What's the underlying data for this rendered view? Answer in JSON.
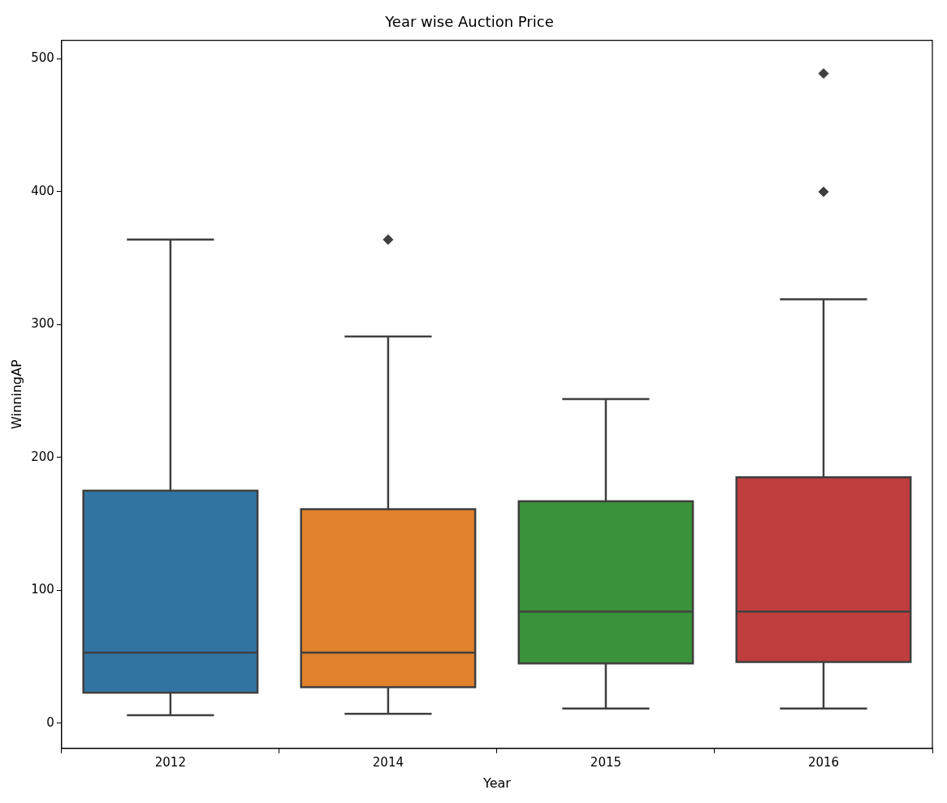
{
  "chart_data": {
    "type": "box",
    "title": "Year wise Auction Price",
    "xlabel": "Year",
    "ylabel": "WinningAP",
    "categories": [
      "2012",
      "2014",
      "2015",
      "2016"
    ],
    "colors": [
      "#3274a1",
      "#e1812c",
      "#3a923a",
      "#c03d3e"
    ],
    "boxes": [
      {
        "low": 6,
        "q1": 23,
        "median": 53,
        "q3": 175,
        "high": 364
      },
      {
        "low": 7,
        "q1": 27,
        "median": 53,
        "q3": 161,
        "high": 291,
        "outliers": [
          364
        ]
      },
      {
        "low": 11,
        "q1": 45,
        "median": 84,
        "q3": 167,
        "high": 244
      },
      {
        "low": 11,
        "q1": 46,
        "median": 84,
        "q3": 185,
        "high": 319,
        "outliers": [
          400,
          489
        ]
      }
    ],
    "marker": "diamond",
    "ylim": [
      -19,
      514
    ],
    "yticks": [
      0,
      100,
      200,
      300,
      400,
      500
    ]
  }
}
